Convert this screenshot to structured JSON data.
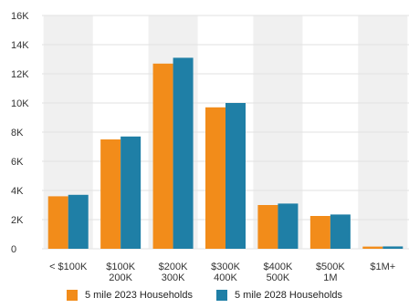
{
  "chart_data": {
    "type": "bar",
    "categories": [
      [
        "< $100K"
      ],
      [
        "$100K",
        "200K"
      ],
      [
        "$200K",
        "300K"
      ],
      [
        "$300K",
        "400K"
      ],
      [
        "$400K",
        "500K"
      ],
      [
        "$500K",
        "1M"
      ],
      [
        "$1M+"
      ]
    ],
    "series": [
      {
        "name": "5 mile 2023 Households",
        "color": "#f28c1a",
        "values": [
          3600,
          7500,
          12700,
          9700,
          3000,
          2250,
          150
        ]
      },
      {
        "name": "5 mile 2028 Households",
        "color": "#1f7fa6",
        "values": [
          3700,
          7700,
          13100,
          10000,
          3100,
          2350,
          160
        ]
      }
    ],
    "ylim": [
      0,
      16000
    ],
    "yticks": [
      0,
      2000,
      4000,
      6000,
      8000,
      10000,
      12000,
      14000,
      16000
    ],
    "ytick_labels": [
      "0",
      "2K",
      "4K",
      "6K",
      "8K",
      "10K",
      "12K",
      "14K",
      "16K"
    ],
    "title": "",
    "xlabel": "",
    "ylabel": "",
    "grid": true,
    "legend_position": "bottom"
  }
}
